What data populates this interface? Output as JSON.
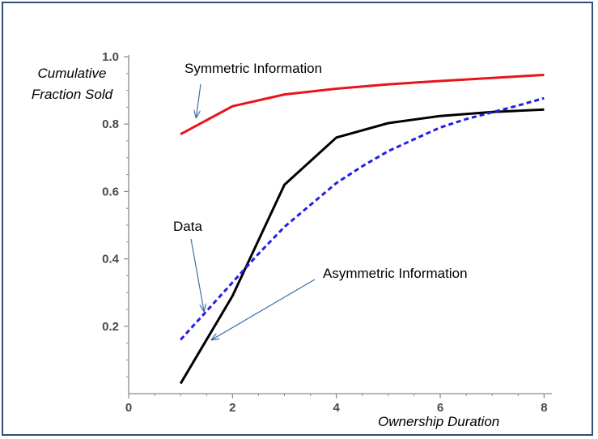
{
  "chart_data": {
    "type": "line",
    "title": "",
    "xlabel": "Ownership Duration",
    "ylabel_lines": [
      "Cumulative",
      "Fraction Sold"
    ],
    "xlim": [
      0,
      8.15
    ],
    "ylim": [
      0,
      1.0
    ],
    "xticks": [
      0,
      2,
      4,
      6,
      8
    ],
    "yticks": [
      0.2,
      0.4,
      0.6,
      0.8,
      1.0
    ],
    "xtick_labels": [
      "0",
      "2",
      "4",
      "6",
      "8"
    ],
    "ytick_labels": [
      "0.2",
      "0.4",
      "0.6",
      "0.8",
      "1.0"
    ],
    "grid": false,
    "series": [
      {
        "name": "Symmetric Information",
        "color": "#e8141c",
        "style": "solid",
        "x": [
          1,
          2,
          3,
          4,
          5,
          6,
          7,
          8
        ],
        "y": [
          0.77,
          0.853,
          0.888,
          0.905,
          0.918,
          0.928,
          0.937,
          0.946
        ]
      },
      {
        "name": "Asymmetric Information",
        "color": "#000000",
        "style": "solid",
        "x": [
          1,
          2,
          3,
          4,
          5,
          6,
          7,
          8
        ],
        "y": [
          0.03,
          0.29,
          0.62,
          0.76,
          0.803,
          0.824,
          0.836,
          0.843
        ]
      },
      {
        "name": "Data",
        "color": "#1f1fe6",
        "style": "dashed",
        "x": [
          1,
          1.5,
          2,
          2.5,
          3,
          3.5,
          4,
          4.5,
          5,
          5.5,
          6,
          6.5,
          7,
          7.5,
          8
        ],
        "y": [
          0.16,
          0.245,
          0.33,
          0.415,
          0.495,
          0.56,
          0.625,
          0.675,
          0.72,
          0.755,
          0.79,
          0.815,
          0.835,
          0.855,
          0.877
        ]
      }
    ],
    "annotations": [
      {
        "text": "Symmetric Information",
        "arrow_to": {
          "x": 1.3,
          "y": 0.82
        }
      },
      {
        "text": "Data",
        "arrow_to": {
          "x": 1.45,
          "y": 0.245
        }
      },
      {
        "text": "Asymmetric Information",
        "arrow_to": {
          "x": 1.6,
          "y": 0.16
        }
      }
    ]
  }
}
